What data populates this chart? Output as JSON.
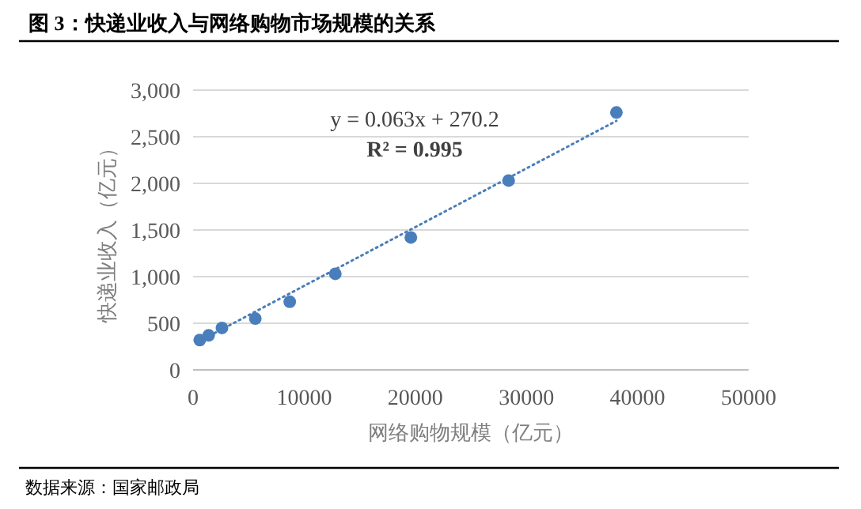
{
  "chart_data": {
    "type": "scatter",
    "title": "图 3：快递业收入与网络购物市场规模的关系",
    "xlabel": "网络购物规模（亿元）",
    "ylabel": "快递业收入（亿元）",
    "series": [
      {
        "type": "scatter",
        "color": "#4a7ebb",
        "marker": "circle",
        "x": [
          600,
          1400,
          2600,
          5600,
          8700,
          12800,
          19600,
          28400,
          38100
        ],
        "values": [
          320,
          370,
          450,
          550,
          730,
          1030,
          1420,
          2030,
          2760
        ]
      },
      {
        "type": "line",
        "color": "#4a7ebb",
        "line_style": "dotted",
        "marker": "none",
        "x": [
          600,
          38100
        ],
        "values": [
          310,
          2670
        ]
      }
    ],
    "xlim": [
      0,
      50000
    ],
    "xticks": [
      0,
      10000,
      20000,
      30000,
      40000,
      50000
    ],
    "ylim": [
      0,
      3000
    ],
    "yticks": [
      0,
      500,
      {
        "value": 1000,
        "label": "1,000"
      },
      {
        "value": 1500,
        "label": "1,500"
      },
      {
        "value": 2000,
        "label": "2,000"
      },
      {
        "value": 2500,
        "label": "2,500"
      },
      {
        "value": 3000,
        "label": "3,000"
      }
    ],
    "grid": "y",
    "annotations": [
      "y = 0.063x + 270.2",
      "R² = 0.995",
      "数据来源：国家邮政局"
    ]
  }
}
